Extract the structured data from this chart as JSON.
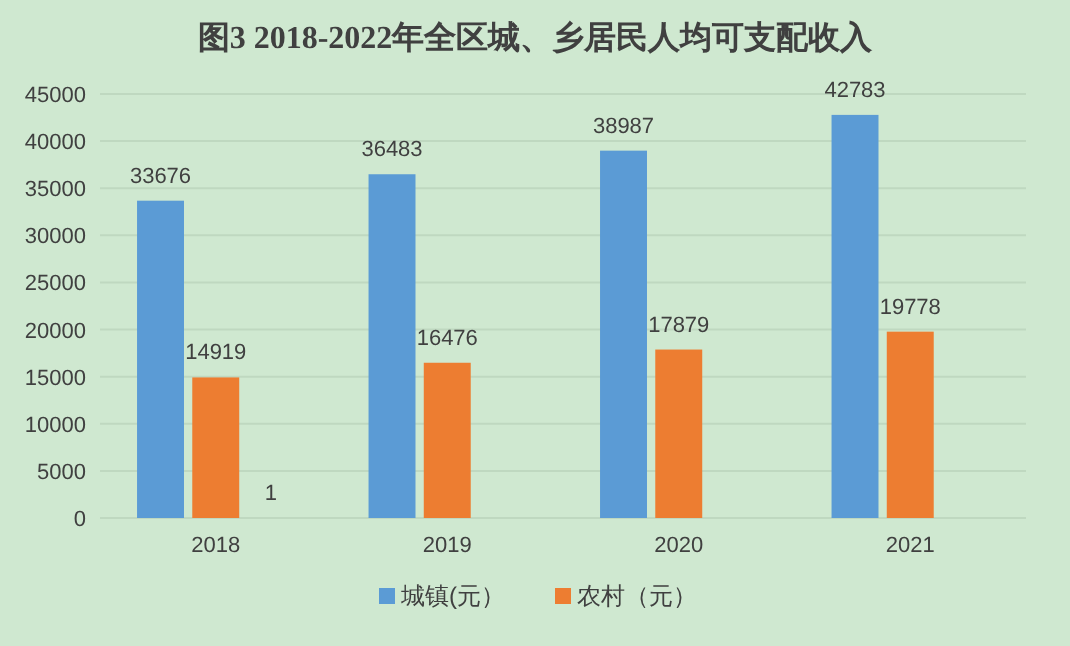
{
  "chart_data": {
    "type": "bar",
    "title": "图3  2018-2022年全区城、乡居民人均可支配收入",
    "categories": [
      "2018",
      "2019",
      "2020",
      "2021"
    ],
    "series": [
      {
        "name": "城镇(元）",
        "color": "#5b9bd5",
        "values": [
          33676,
          36483,
          38987,
          42783
        ]
      },
      {
        "name": "农村（元）",
        "color": "#ed7d31",
        "values": [
          14919,
          16476,
          17879,
          19778
        ]
      },
      {
        "color": "#a5a5a5",
        "values": [
          1,
          null,
          null,
          null
        ]
      }
    ],
    "ylim": [
      0,
      45000
    ],
    "yticks": [
      0,
      5000,
      10000,
      15000,
      20000,
      25000,
      30000,
      35000,
      40000,
      45000
    ],
    "grid": "y",
    "legend": "bottom",
    "data_labels": true
  }
}
